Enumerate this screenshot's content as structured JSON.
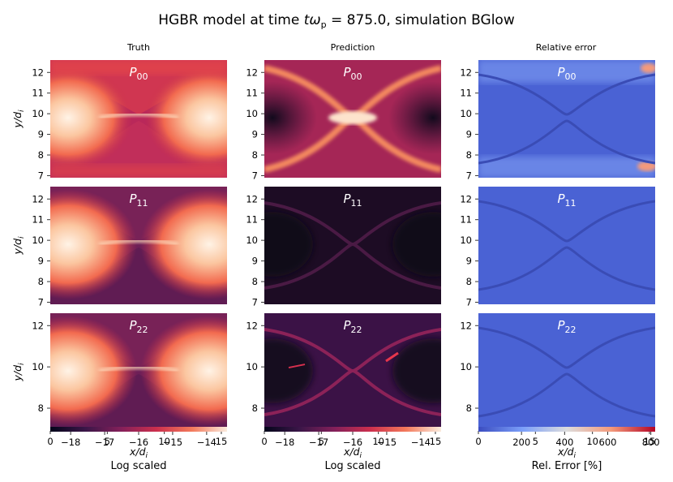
{
  "title": "HGBR model at time tωₚ = 875.0, simulation BGlow",
  "title_parts": {
    "prefix": "HGBR model at time ",
    "var": "tω",
    "sub": "p",
    "suffix": " = 875.0, simulation BGlow"
  },
  "chart_data": {
    "type": "heatmap",
    "columns": [
      "Truth",
      "Prediction",
      "Relative error"
    ],
    "rows": [
      {
        "label": "P",
        "sub": "00",
        "y_ticks": [
          7,
          8,
          9,
          10,
          11,
          12
        ]
      },
      {
        "label": "P",
        "sub": "11",
        "y_ticks": [
          7,
          8,
          9,
          10,
          11,
          12
        ]
      },
      {
        "label": "P",
        "sub": "22",
        "y_ticks": [
          8,
          10,
          12
        ]
      }
    ],
    "xlabel": "x/d",
    "xlabel_sub": "i",
    "ylabel": "y/d",
    "ylabel_sub": "i",
    "x_ticks": [
      0,
      5,
      10,
      15
    ],
    "xlim": [
      0,
      15.5
    ],
    "ylim": [
      6.9,
      12.6
    ],
    "colorbars": [
      {
        "label": "Log scaled",
        "ticks": [
          "−18",
          "−17",
          "−16",
          "−15",
          "−14"
        ],
        "tick_values": [
          -18,
          -17,
          -16,
          -15,
          -14
        ],
        "range": [
          -18.6,
          -13.4
        ],
        "colormap": "rocket"
      },
      {
        "label": "Log scaled",
        "ticks": [
          "−18",
          "−17",
          "−16",
          "−15",
          "−14"
        ],
        "tick_values": [
          -18,
          -17,
          -16,
          -15,
          -14
        ],
        "range": [
          -18.6,
          -13.4
        ],
        "colormap": "rocket"
      },
      {
        "label": "Rel. Error [%]",
        "ticks": [
          "200",
          "400",
          "600",
          "800"
        ],
        "tick_values": [
          200,
          400,
          600,
          800
        ],
        "range": [
          0,
          820
        ],
        "colormap": "coolwarm"
      }
    ]
  },
  "colors": {
    "rocket_dark": "#160c1e",
    "rocket_mid": "#6e1f57",
    "rocket_red": "#e83f3f",
    "rocket_light": "#faebdd",
    "cw_blue": "#3b4cc0",
    "cw_white": "#dddddd",
    "cw_red": "#b40426"
  }
}
